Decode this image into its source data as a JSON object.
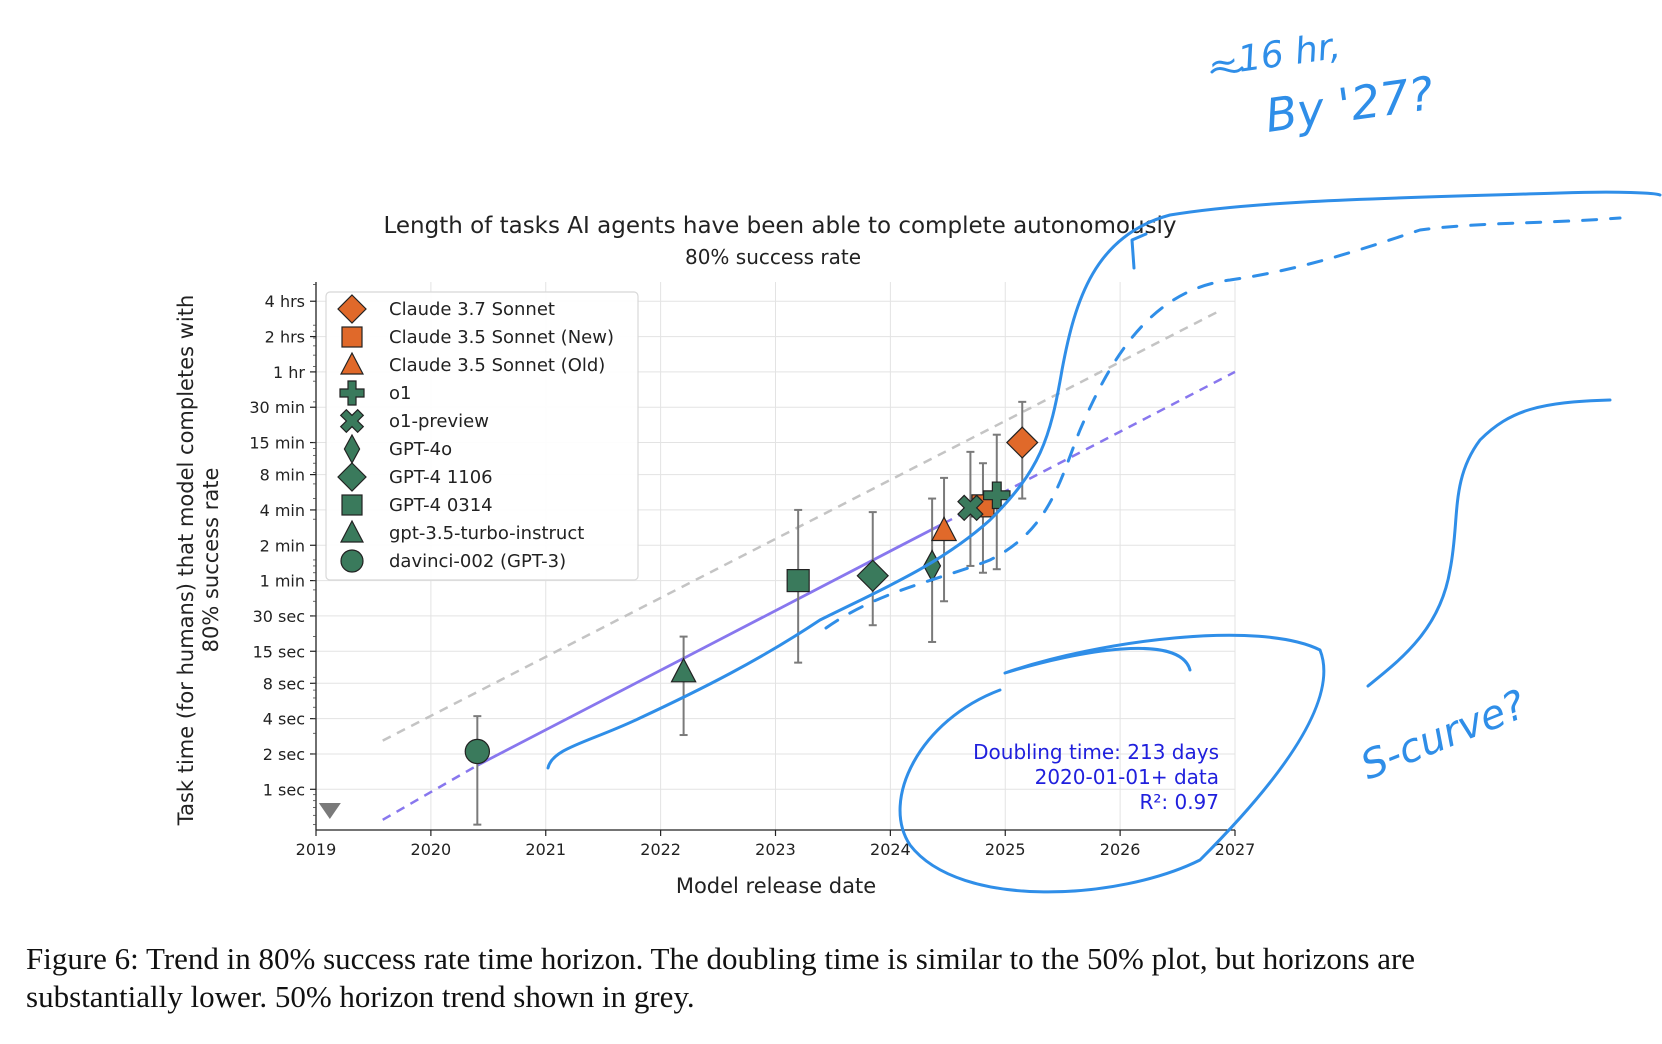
{
  "chart_data": {
    "type": "scatter",
    "title": "Length of tasks AI agents have been able to complete autonomously",
    "subtitle": "80% success rate",
    "xlabel": "Model release date",
    "ylabel_line1": "Task time (for humans) that model completes with",
    "ylabel_line2": "80% success rate",
    "x_ticks": [
      "2019",
      "2020",
      "2021",
      "2022",
      "2023",
      "2024",
      "2025",
      "2026",
      "2027"
    ],
    "xlim": [
      "2019-01-01",
      "2027-01-01"
    ],
    "y_scale": "log",
    "y_ticks": [
      {
        "label": "1 sec",
        "value": 1
      },
      {
        "label": "2 sec",
        "value": 2
      },
      {
        "label": "4 sec",
        "value": 4
      },
      {
        "label": "8 sec",
        "value": 8
      },
      {
        "label": "15 sec",
        "value": 15
      },
      {
        "label": "30 sec",
        "value": 30
      },
      {
        "label": "1 min",
        "value": 60
      },
      {
        "label": "2 min",
        "value": 120
      },
      {
        "label": "4 min",
        "value": 240
      },
      {
        "label": "8 min",
        "value": 480
      },
      {
        "label": "15 min",
        "value": 900
      },
      {
        "label": "30 min",
        "value": 1800
      },
      {
        "label": "1 hr",
        "value": 3600
      },
      {
        "label": "2 hrs",
        "value": 7200
      },
      {
        "label": "4 hrs",
        "value": 14400
      }
    ],
    "ylim_seconds": [
      0.45,
      21000
    ],
    "grid": true,
    "legend_position": "top-left",
    "points": [
      {
        "name": "Claude 3.7 Sonnet",
        "date": "2025-02-24",
        "seconds": 900,
        "low": 300,
        "high": 2000,
        "marker": "diamond",
        "color": "#e0692a"
      },
      {
        "name": "Claude 3.5 Sonnet (New)",
        "date": "2024-10-22",
        "seconds": 260,
        "low": 70,
        "high": 600,
        "marker": "square",
        "color": "#e0692a"
      },
      {
        "name": "Claude 3.5 Sonnet (Old)",
        "date": "2024-06-20",
        "seconds": 160,
        "low": 40,
        "high": 450,
        "marker": "triangle",
        "color": "#e0692a"
      },
      {
        "name": "o1",
        "date": "2024-12-05",
        "seconds": 320,
        "low": 75,
        "high": 1050,
        "marker": "plus",
        "color": "#3a7a5c"
      },
      {
        "name": "o1-preview",
        "date": "2024-09-12",
        "seconds": 250,
        "low": 80,
        "high": 750,
        "marker": "x",
        "color": "#3a7a5c"
      },
      {
        "name": "GPT-4o",
        "date": "2024-05-13",
        "seconds": 80,
        "low": 18,
        "high": 300,
        "marker": "thin-diamond",
        "color": "#3a7a5c"
      },
      {
        "name": "GPT-4 1106",
        "date": "2023-11-06",
        "seconds": 66,
        "low": 25,
        "high": 230,
        "marker": "diamond",
        "color": "#3a7a5c"
      },
      {
        "name": "GPT-4 0314",
        "date": "2023-03-14",
        "seconds": 60,
        "low": 12,
        "high": 240,
        "marker": "square",
        "color": "#3a7a5c"
      },
      {
        "name": "gpt-3.5-turbo-instruct",
        "date": "2022-03-15",
        "seconds": 10,
        "low": 2.9,
        "high": 20,
        "marker": "triangle",
        "color": "#3a7a5c"
      },
      {
        "name": "davinci-002 (GPT-3)",
        "date": "2020-05-28",
        "seconds": 2.1,
        "low": 0.5,
        "high": 4.2,
        "marker": "circle",
        "color": "#3a7a5c"
      }
    ],
    "below_axis_marker": {
      "date": "2019-02-14",
      "color": "#7a7a7a"
    },
    "trend_80": {
      "color": "#8877ee",
      "solid": [
        [
          "2020-05-28",
          1.6
        ],
        [
          "2024-06-20",
          185
        ]
      ],
      "dashed_before": [
        [
          "2019-08-01",
          0.55
        ],
        [
          "2020-05-28",
          1.6
        ]
      ],
      "dashed_after": [
        [
          "2024-06-20",
          185
        ],
        [
          "2027-01-01",
          3600
        ]
      ]
    },
    "trend_50": {
      "color": "#c4c4c4",
      "dashed": [
        [
          "2019-08-01",
          2.6
        ],
        [
          "2026-11-15",
          12000
        ]
      ]
    },
    "annotation": {
      "line1": "Doubling time: 213 days",
      "line2": "2020-01-01+ data",
      "line3": "R²: 0.97",
      "color": "#2020dd"
    }
  },
  "handwriting": {
    "note_top_1": "~16 hr,",
    "note_top_2": "By '27?",
    "note_side": "S-curve?",
    "color": "#2f8ee8"
  },
  "caption": "Figure 6: Trend in 80% success rate time horizon. The doubling time is similar to the 50% plot, but horizons are substantially lower. 50% horizon trend shown in grey."
}
